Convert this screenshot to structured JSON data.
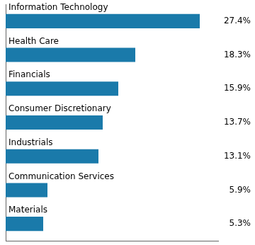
{
  "chart_data": {
    "type": "bar",
    "orientation": "horizontal",
    "categories": [
      "Information Technology",
      "Health Care",
      "Financials",
      "Consumer Discretionary",
      "Industrials",
      "Communication Services",
      "Materials"
    ],
    "values": [
      27.4,
      18.3,
      15.9,
      13.7,
      13.1,
      5.9,
      5.3
    ],
    "value_labels": [
      "27.4%",
      "18.3%",
      "15.9%",
      "13.7%",
      "13.1%",
      "5.9%",
      "5.3%"
    ],
    "data_labels": true,
    "color": "#1a7aaa",
    "xlim": [
      0,
      30
    ],
    "tick_labels": false,
    "grid": false
  }
}
